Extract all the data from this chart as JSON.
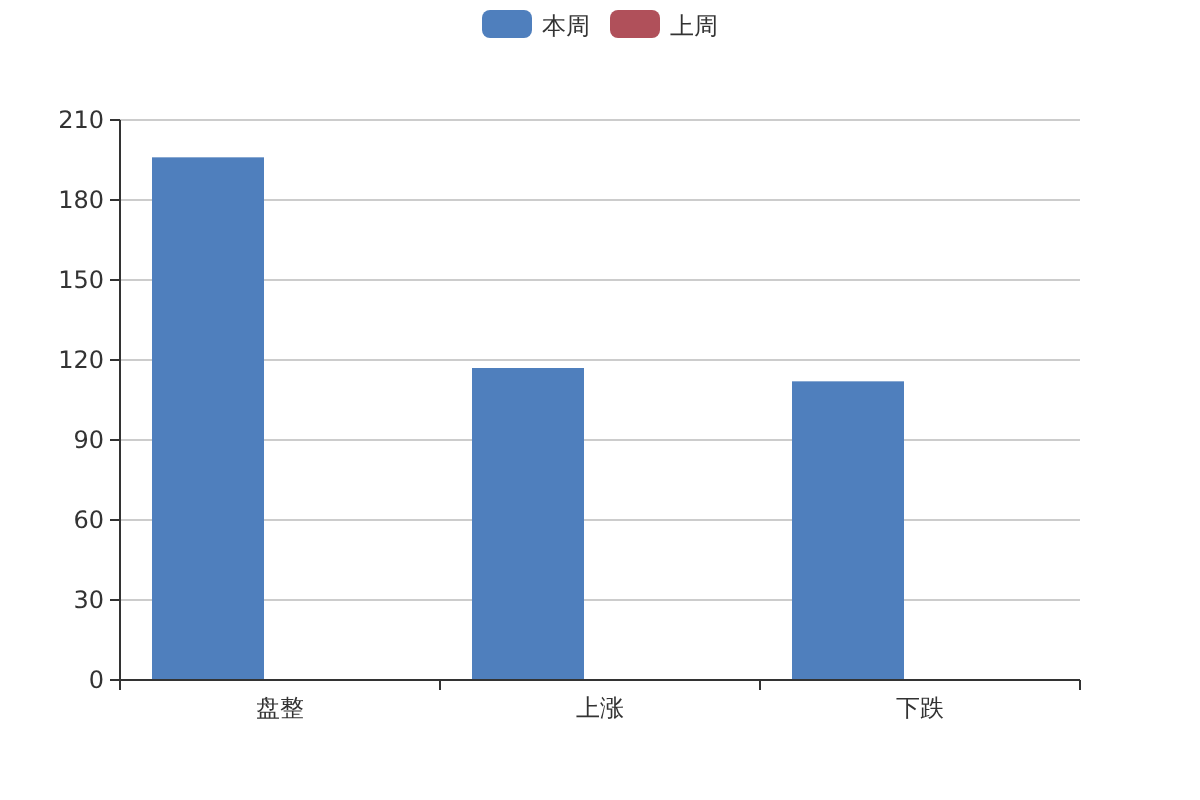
{
  "chart_data": {
    "type": "bar",
    "categories": [
      "盘整",
      "上涨",
      "下跌"
    ],
    "series": [
      {
        "name": "本周",
        "color": "#4f7fbd",
        "values": [
          196,
          117,
          112
        ]
      },
      {
        "name": "上周",
        "color": "#b0505a",
        "values": [
          null,
          null,
          null
        ]
      }
    ],
    "ylim": [
      0,
      210
    ],
    "yticks": [
      0,
      30,
      60,
      90,
      120,
      150,
      180,
      210
    ],
    "grid": "y",
    "legend": "top"
  }
}
